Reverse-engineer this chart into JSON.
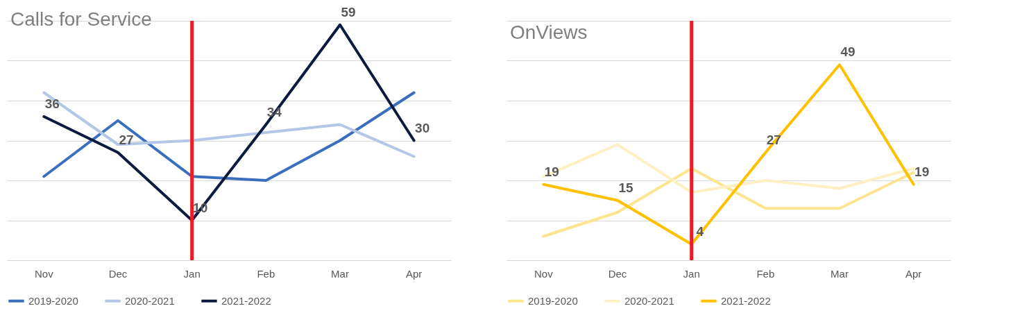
{
  "chart_data": [
    {
      "type": "line",
      "title": "Calls for Service",
      "categories": [
        "Nov",
        "Dec",
        "Jan",
        "Feb",
        "Mar",
        "Apr"
      ],
      "ylim": [
        0,
        60
      ],
      "yticks": [
        {
          "value": 0,
          "label": null
        },
        {
          "value": 10,
          "label": null
        },
        {
          "value": 20,
          "label": null
        },
        {
          "value": 30,
          "label": null
        },
        {
          "value": 40,
          "label": null
        },
        {
          "value": 50,
          "label": null
        },
        {
          "value": 60,
          "label": null
        }
      ],
      "tick_labels": "x",
      "grid": "y",
      "legend": "bottom",
      "ref_lines": [
        {
          "axis": "x",
          "value": "Jan",
          "color": "#ee1c25"
        }
      ],
      "series": [
        {
          "name": "2019-2020",
          "color": "#3a6ebf",
          "values": [
            21,
            35,
            21,
            20,
            30,
            42
          ]
        },
        {
          "name": "2020-2021",
          "color": "#b4c7e7",
          "values": [
            42,
            29,
            30,
            32,
            34,
            26
          ]
        },
        {
          "name": "2021-2022",
          "color": "#0d1a40",
          "values": [
            36,
            27,
            10,
            34,
            59,
            30
          ],
          "value_labels": [
            "36",
            "27",
            "10",
            "34",
            "59",
            "30"
          ]
        }
      ]
    },
    {
      "type": "line",
      "title": "OnViews",
      "categories": [
        "Nov",
        "Dec",
        "Jan",
        "Feb",
        "Mar",
        "Apr"
      ],
      "ylim": [
        0,
        60
      ],
      "yticks": [
        {
          "value": 0,
          "label": null
        },
        {
          "value": 10,
          "label": null
        },
        {
          "value": 20,
          "label": null
        },
        {
          "value": 30,
          "label": null
        },
        {
          "value": 40,
          "label": null
        },
        {
          "value": 50,
          "label": null
        },
        {
          "value": 60,
          "label": null
        }
      ],
      "tick_labels": "x",
      "grid": "y",
      "legend": "bottom",
      "ref_lines": [
        {
          "axis": "x",
          "value": "Jan",
          "color": "#ee1c25"
        }
      ],
      "series": [
        {
          "name": "2019-2020",
          "color": "#fde48e",
          "values": [
            6,
            12,
            23,
            13,
            13,
            22
          ]
        },
        {
          "name": "2020-2021",
          "color": "#fff0c4",
          "values": [
            21,
            29,
            17,
            20,
            18,
            23
          ]
        },
        {
          "name": "2021-2022",
          "color": "#ffc000",
          "values": [
            19,
            15,
            4,
            27,
            49,
            19
          ],
          "value_labels": [
            "19",
            "15",
            "4",
            "27",
            "49",
            "19"
          ]
        }
      ]
    }
  ]
}
